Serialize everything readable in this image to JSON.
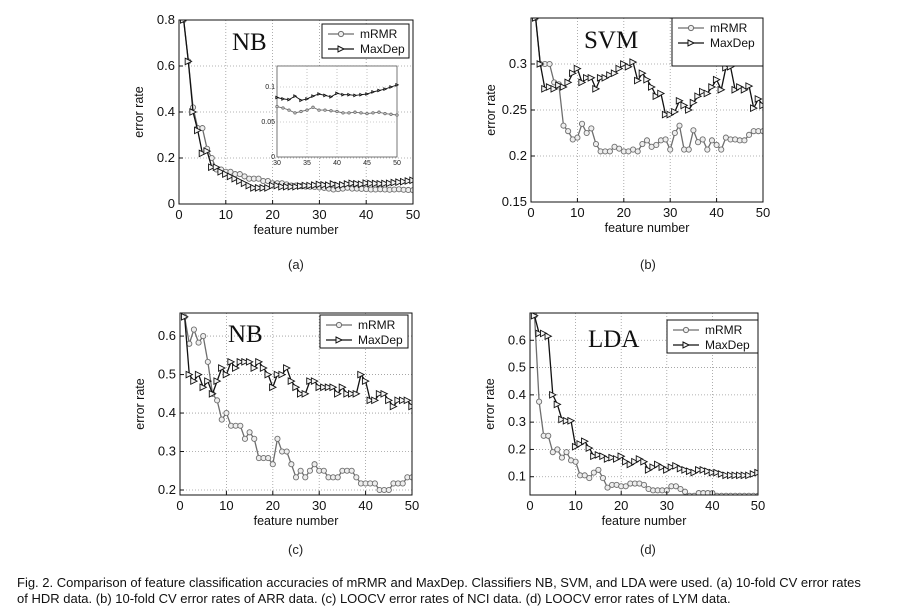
{
  "chart_data": [
    {
      "type": "line",
      "panel": "(a)",
      "title": "NB",
      "xlabel": "feature number",
      "ylabel": "error rate",
      "xlim": [
        0,
        50
      ],
      "ylim": [
        0,
        0.8
      ],
      "xticks": [
        0,
        10,
        20,
        30,
        40,
        50
      ],
      "yticks": [
        0,
        0.2,
        0.4,
        0.6,
        0.8
      ],
      "grid": true,
      "legend": "top-right",
      "x": [
        1,
        2,
        3,
        4,
        5,
        6,
        7,
        8,
        9,
        10,
        11,
        12,
        13,
        14,
        15,
        16,
        17,
        18,
        19,
        20,
        21,
        22,
        23,
        24,
        25,
        26,
        27,
        28,
        29,
        30,
        31,
        32,
        33,
        34,
        35,
        36,
        37,
        38,
        39,
        40,
        41,
        42,
        43,
        44,
        45,
        46,
        47,
        48,
        49,
        50
      ],
      "series": [
        {
          "name": "mRMR",
          "values": [
            0.8,
            0.62,
            0.42,
            0.33,
            0.33,
            0.24,
            0.2,
            0.15,
            0.15,
            0.14,
            0.14,
            0.13,
            0.13,
            0.12,
            0.11,
            0.11,
            0.11,
            0.1,
            0.1,
            0.09,
            0.09,
            0.09,
            0.085,
            0.08,
            0.08,
            0.078,
            0.076,
            0.075,
            0.074,
            0.072,
            0.07,
            0.067,
            0.063,
            0.065,
            0.067,
            0.071,
            0.067,
            0.067,
            0.066,
            0.065,
            0.063,
            0.063,
            0.064,
            0.063,
            0.062,
            0.063,
            0.064,
            0.062,
            0.061,
            0.06
          ]
        },
        {
          "name": "MaxDep",
          "values": [
            0.8,
            0.62,
            0.4,
            0.32,
            0.22,
            0.23,
            0.16,
            0.16,
            0.14,
            0.13,
            0.12,
            0.11,
            0.1,
            0.09,
            0.08,
            0.07,
            0.07,
            0.07,
            0.07,
            0.08,
            0.08,
            0.075,
            0.075,
            0.075,
            0.075,
            0.078,
            0.08,
            0.08,
            0.082,
            0.085,
            0.083,
            0.082,
            0.087,
            0.081,
            0.083,
            0.087,
            0.09,
            0.088,
            0.086,
            0.091,
            0.089,
            0.089,
            0.088,
            0.089,
            0.09,
            0.093,
            0.095,
            0.097,
            0.1,
            0.103
          ]
        }
      ],
      "inset": {
        "xlim": [
          30,
          50
        ],
        "ylim": [
          0,
          0.13
        ],
        "xticks": [
          30,
          35,
          40,
          45,
          50
        ],
        "yticks": [
          0,
          0.05,
          0.1
        ]
      }
    },
    {
      "type": "line",
      "panel": "(b)",
      "title": "SVM",
      "xlabel": "feature number",
      "ylabel": "error rate",
      "xlim": [
        0,
        50
      ],
      "ylim": [
        0.15,
        0.35
      ],
      "xticks": [
        0,
        10,
        20,
        30,
        40,
        50
      ],
      "yticks": [
        0.15,
        0.2,
        0.25,
        0.3
      ],
      "grid": true,
      "legend": "top-right",
      "x": [
        1,
        2,
        3,
        4,
        5,
        6,
        7,
        8,
        9,
        10,
        11,
        12,
        13,
        14,
        15,
        16,
        17,
        18,
        19,
        20,
        21,
        22,
        23,
        24,
        25,
        26,
        27,
        28,
        29,
        30,
        31,
        32,
        33,
        34,
        35,
        36,
        37,
        38,
        39,
        40,
        41,
        42,
        43,
        44,
        45,
        46,
        47,
        48,
        49,
        50
      ],
      "series": [
        {
          "name": "mRMR",
          "values": [
            0.35,
            0.3,
            0.3,
            0.3,
            0.28,
            0.278,
            0.233,
            0.227,
            0.218,
            0.22,
            0.235,
            0.225,
            0.23,
            0.213,
            0.205,
            0.205,
            0.205,
            0.21,
            0.208,
            0.205,
            0.205,
            0.207,
            0.205,
            0.213,
            0.217,
            0.21,
            0.212,
            0.217,
            0.218,
            0.207,
            0.225,
            0.233,
            0.207,
            0.207,
            0.228,
            0.215,
            0.218,
            0.207,
            0.217,
            0.212,
            0.207,
            0.22,
            0.218,
            0.218,
            0.217,
            0.217,
            0.223,
            0.227,
            0.227,
            0.227
          ]
        },
        {
          "name": "MaxDep",
          "values": [
            0.35,
            0.3,
            0.273,
            0.275,
            0.273,
            0.277,
            0.275,
            0.28,
            0.29,
            0.295,
            0.28,
            0.285,
            0.285,
            0.273,
            0.285,
            0.285,
            0.288,
            0.29,
            0.295,
            0.3,
            0.297,
            0.302,
            0.282,
            0.29,
            0.283,
            0.275,
            0.265,
            0.268,
            0.245,
            0.245,
            0.248,
            0.26,
            0.255,
            0.25,
            0.258,
            0.265,
            0.27,
            0.268,
            0.275,
            0.283,
            0.272,
            0.296,
            0.297,
            0.272,
            0.275,
            0.272,
            0.276,
            0.252,
            0.262,
            0.255
          ]
        }
      ]
    },
    {
      "type": "line",
      "panel": "(c)",
      "title": "NB",
      "xlabel": "feature number",
      "ylabel": "error rate",
      "xlim": [
        0,
        50
      ],
      "ylim": [
        0.187,
        0.66
      ],
      "xticks": [
        0,
        10,
        20,
        30,
        40,
        50
      ],
      "yticks": [
        0.2,
        0.3,
        0.4,
        0.5,
        0.6
      ],
      "grid": true,
      "legend": "top-right",
      "x": [
        1,
        2,
        3,
        4,
        5,
        6,
        7,
        8,
        9,
        10,
        11,
        12,
        13,
        14,
        15,
        16,
        17,
        18,
        19,
        20,
        21,
        22,
        23,
        24,
        25,
        26,
        27,
        28,
        29,
        30,
        31,
        32,
        33,
        34,
        35,
        36,
        37,
        38,
        39,
        40,
        41,
        42,
        43,
        44,
        45,
        46,
        47,
        48,
        49,
        50
      ],
      "series": [
        {
          "name": "mRMR",
          "values": [
            0.65,
            0.58,
            0.617,
            0.583,
            0.6,
            0.533,
            0.45,
            0.433,
            0.383,
            0.4,
            0.367,
            0.367,
            0.367,
            0.333,
            0.35,
            0.333,
            0.283,
            0.283,
            0.283,
            0.267,
            0.333,
            0.3,
            0.3,
            0.267,
            0.233,
            0.25,
            0.233,
            0.25,
            0.267,
            0.25,
            0.25,
            0.233,
            0.233,
            0.233,
            0.25,
            0.25,
            0.25,
            0.233,
            0.217,
            0.217,
            0.217,
            0.217,
            0.2,
            0.2,
            0.2,
            0.217,
            0.217,
            0.217,
            0.233,
            0.233
          ]
        },
        {
          "name": "MaxDep",
          "values": [
            0.65,
            0.5,
            0.483,
            0.5,
            0.467,
            0.483,
            0.45,
            0.483,
            0.517,
            0.5,
            0.533,
            0.517,
            0.533,
            0.533,
            0.533,
            0.517,
            0.533,
            0.517,
            0.5,
            0.467,
            0.5,
            0.5,
            0.517,
            0.483,
            0.467,
            0.45,
            0.45,
            0.483,
            0.483,
            0.467,
            0.467,
            0.467,
            0.467,
            0.45,
            0.467,
            0.45,
            0.45,
            0.45,
            0.5,
            0.483,
            0.433,
            0.433,
            0.45,
            0.45,
            0.433,
            0.417,
            0.433,
            0.433,
            0.433,
            0.417
          ]
        }
      ]
    },
    {
      "type": "line",
      "panel": "(d)",
      "title": "LDA",
      "xlabel": "feature number",
      "ylabel": "error rate",
      "xlim": [
        0,
        50
      ],
      "ylim": [
        0.033,
        0.7
      ],
      "xticks": [
        0,
        10,
        20,
        30,
        40,
        50
      ],
      "yticks": [
        0.1,
        0.2,
        0.3,
        0.4,
        0.5,
        0.6
      ],
      "grid": true,
      "legend": "top-right",
      "x": [
        1,
        2,
        3,
        4,
        5,
        6,
        7,
        8,
        9,
        10,
        11,
        12,
        13,
        14,
        15,
        16,
        17,
        18,
        19,
        20,
        21,
        22,
        23,
        24,
        25,
        26,
        27,
        28,
        29,
        30,
        31,
        32,
        33,
        34,
        35,
        36,
        37,
        38,
        39,
        40,
        41,
        42,
        43,
        44,
        45,
        46,
        47,
        48,
        49,
        50
      ],
      "series": [
        {
          "name": "mRMR",
          "values": [
            0.69,
            0.375,
            0.25,
            0.25,
            0.19,
            0.2,
            0.17,
            0.19,
            0.16,
            0.155,
            0.105,
            0.105,
            0.095,
            0.115,
            0.125,
            0.095,
            0.06,
            0.07,
            0.07,
            0.065,
            0.065,
            0.075,
            0.075,
            0.075,
            0.07,
            0.055,
            0.05,
            0.05,
            0.05,
            0.05,
            0.065,
            0.065,
            0.055,
            0.045,
            0.03,
            0.03,
            0.04,
            0.04,
            0.04,
            0.04,
            0.03,
            0.03,
            0.03,
            0.03,
            0.03,
            0.03,
            0.03,
            0.03,
            0.03,
            0.03
          ]
        },
        {
          "name": "MaxDep",
          "values": [
            0.69,
            0.625,
            0.625,
            0.615,
            0.4,
            0.365,
            0.31,
            0.305,
            0.305,
            0.21,
            0.22,
            0.23,
            0.205,
            0.175,
            0.18,
            0.175,
            0.165,
            0.17,
            0.165,
            0.175,
            0.155,
            0.145,
            0.155,
            0.165,
            0.155,
            0.125,
            0.135,
            0.145,
            0.135,
            0.125,
            0.135,
            0.14,
            0.13,
            0.125,
            0.12,
            0.115,
            0.125,
            0.125,
            0.12,
            0.115,
            0.115,
            0.11,
            0.105,
            0.105,
            0.105,
            0.105,
            0.105,
            0.105,
            0.11,
            0.115
          ]
        }
      ]
    }
  ],
  "caption": {
    "line1": "Fig. 2. Comparison of feature classification accuracies of mRMR and MaxDep. Classifiers NB, SVM, and LDA were used. (a) 10-fold CV error rates",
    "line2": "of HDR data. (b) 10-fold CV error rates of ARR data. (c) LOOCV error rates of NCI data. (d) LOOCV error rates of LYM data."
  },
  "colors": {
    "mRMR": "#6e6e6e",
    "MaxDep": "#111111",
    "grid": "#9a9a9a"
  }
}
